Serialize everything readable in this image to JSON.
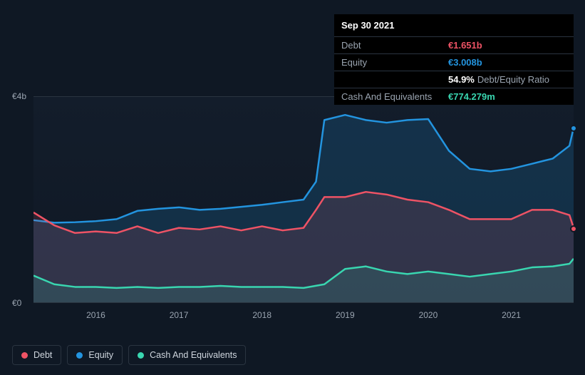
{
  "tooltip": {
    "date": "Sep 30 2021",
    "rows": [
      {
        "label": "Debt",
        "value": "€1.651b",
        "cls": "debt"
      },
      {
        "label": "Equity",
        "value": "€3.008b",
        "cls": "equity"
      },
      {
        "label": "",
        "ratio_pct": "54.9%",
        "ratio_label": "Debt/Equity Ratio"
      },
      {
        "label": "Cash And Equivalents",
        "value": "€774.279m",
        "cls": "cash"
      }
    ]
  },
  "chart": {
    "type": "area",
    "ylim": [
      0,
      4
    ],
    "yticks": [
      {
        "v": 0,
        "label": "€0"
      },
      {
        "v": 4,
        "label": "€4b"
      }
    ],
    "xlim": [
      2015.25,
      2021.75
    ],
    "xticks": [
      2016,
      2017,
      2018,
      2019,
      2020,
      2021
    ],
    "background_color": "#0f1824",
    "grid_color": "#2a3440",
    "series": [
      {
        "name": "Equity",
        "color": "#2394df",
        "fill": "rgba(35,148,223,0.18)",
        "line_width": 2.5,
        "end_marker": true,
        "data": [
          [
            2015.25,
            1.6
          ],
          [
            2015.5,
            1.55
          ],
          [
            2015.75,
            1.56
          ],
          [
            2016.0,
            1.58
          ],
          [
            2016.25,
            1.62
          ],
          [
            2016.5,
            1.78
          ],
          [
            2016.75,
            1.82
          ],
          [
            2017.0,
            1.85
          ],
          [
            2017.25,
            1.8
          ],
          [
            2017.5,
            1.82
          ],
          [
            2017.75,
            1.86
          ],
          [
            2018.0,
            1.9
          ],
          [
            2018.25,
            1.95
          ],
          [
            2018.5,
            2.0
          ],
          [
            2018.65,
            2.35
          ],
          [
            2018.75,
            3.55
          ],
          [
            2019.0,
            3.65
          ],
          [
            2019.25,
            3.55
          ],
          [
            2019.5,
            3.5
          ],
          [
            2019.75,
            3.55
          ],
          [
            2020.0,
            3.57
          ],
          [
            2020.25,
            2.95
          ],
          [
            2020.5,
            2.6
          ],
          [
            2020.75,
            2.55
          ],
          [
            2021.0,
            2.6
          ],
          [
            2021.25,
            2.7
          ],
          [
            2021.5,
            2.8
          ],
          [
            2021.7,
            3.05
          ],
          [
            2021.75,
            3.4
          ]
        ]
      },
      {
        "name": "Debt",
        "color": "#ee5365",
        "fill": "rgba(238,83,101,0.14)",
        "line_width": 2.5,
        "end_marker": true,
        "data": [
          [
            2015.25,
            1.75
          ],
          [
            2015.5,
            1.5
          ],
          [
            2015.75,
            1.35
          ],
          [
            2016.0,
            1.38
          ],
          [
            2016.25,
            1.35
          ],
          [
            2016.5,
            1.48
          ],
          [
            2016.75,
            1.35
          ],
          [
            2017.0,
            1.45
          ],
          [
            2017.25,
            1.42
          ],
          [
            2017.5,
            1.48
          ],
          [
            2017.75,
            1.4
          ],
          [
            2018.0,
            1.48
          ],
          [
            2018.25,
            1.4
          ],
          [
            2018.5,
            1.45
          ],
          [
            2018.65,
            1.8
          ],
          [
            2018.75,
            2.05
          ],
          [
            2019.0,
            2.05
          ],
          [
            2019.25,
            2.15
          ],
          [
            2019.5,
            2.1
          ],
          [
            2019.75,
            2.0
          ],
          [
            2020.0,
            1.95
          ],
          [
            2020.25,
            1.8
          ],
          [
            2020.5,
            1.62
          ],
          [
            2020.75,
            1.62
          ],
          [
            2021.0,
            1.62
          ],
          [
            2021.25,
            1.8
          ],
          [
            2021.5,
            1.8
          ],
          [
            2021.7,
            1.7
          ],
          [
            2021.75,
            1.45
          ]
        ]
      },
      {
        "name": "Cash And Equivalents",
        "color": "#39d6b0",
        "fill": "rgba(57,214,176,0.14)",
        "line_width": 2.5,
        "end_marker": false,
        "data": [
          [
            2015.25,
            0.52
          ],
          [
            2015.5,
            0.35
          ],
          [
            2015.75,
            0.3
          ],
          [
            2016.0,
            0.3
          ],
          [
            2016.25,
            0.28
          ],
          [
            2016.5,
            0.3
          ],
          [
            2016.75,
            0.28
          ],
          [
            2017.0,
            0.3
          ],
          [
            2017.25,
            0.3
          ],
          [
            2017.5,
            0.32
          ],
          [
            2017.75,
            0.3
          ],
          [
            2018.0,
            0.3
          ],
          [
            2018.25,
            0.3
          ],
          [
            2018.5,
            0.28
          ],
          [
            2018.75,
            0.35
          ],
          [
            2019.0,
            0.65
          ],
          [
            2019.25,
            0.7
          ],
          [
            2019.5,
            0.6
          ],
          [
            2019.75,
            0.55
          ],
          [
            2020.0,
            0.6
          ],
          [
            2020.25,
            0.55
          ],
          [
            2020.5,
            0.5
          ],
          [
            2020.75,
            0.55
          ],
          [
            2021.0,
            0.6
          ],
          [
            2021.25,
            0.68
          ],
          [
            2021.5,
            0.7
          ],
          [
            2021.7,
            0.75
          ],
          [
            2021.75,
            0.85
          ]
        ]
      }
    ],
    "legend": [
      {
        "label": "Debt",
        "color": "#ee5365"
      },
      {
        "label": "Equity",
        "color": "#2394df"
      },
      {
        "label": "Cash And Equivalents",
        "color": "#39d6b0"
      }
    ]
  }
}
